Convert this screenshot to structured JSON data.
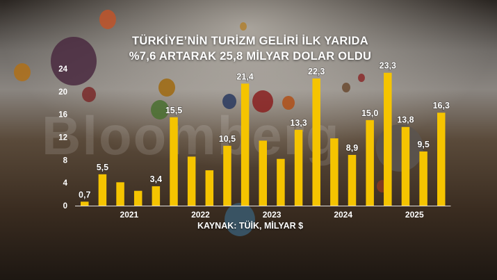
{
  "title_line1": "TÜRKİYE’NİN TURİZM GELİRİ İLK YARIDA",
  "title_line2": "%7,6 ARTARAK 25,8 MİLYAR DOLAR OLDU",
  "source": "KAYNAK: TÜİK, MİLYAR $",
  "watermark": "Bloomberg",
  "colors": {
    "bar": "#f5c400",
    "label": "#ffffff",
    "background": "#1d1712"
  },
  "chart_data": {
    "type": "bar",
    "title": "TÜRKİYE’NİN TURİZM GELİRİ İLK YARIDA %7,6 ARTARAK 25,8 MİLYAR DOLAR OLDU",
    "xlabel": "",
    "ylabel": "",
    "ylim": [
      0,
      24
    ],
    "yticks": [
      0,
      4,
      8,
      12,
      16,
      20,
      24
    ],
    "grid": false,
    "series": [
      {
        "values": [
          0.7,
          5.5,
          4.1,
          2.6,
          3.4,
          15.5,
          8.6,
          6.2,
          10.5,
          21.4,
          11.4,
          8.2,
          13.3,
          22.3,
          11.8,
          8.9,
          15.0,
          23.3,
          13.8,
          9.5,
          16.3
        ],
        "labels": [
          "0,7",
          "5,5",
          "",
          "",
          "3,4",
          "15,5",
          "",
          "",
          "10,5",
          "21,4",
          "",
          "",
          "13,3",
          "22,3",
          "",
          "8,9",
          "15,0",
          "23,3",
          "13,8",
          "9,5",
          "16,3"
        ]
      }
    ],
    "year_labels": [
      {
        "label": "2021",
        "from": 1,
        "to": 4
      },
      {
        "label": "2022",
        "from": 5,
        "to": 8
      },
      {
        "label": "2023",
        "from": 9,
        "to": 12
      },
      {
        "label": "2024",
        "from": 13,
        "to": 16
      },
      {
        "label": "2025",
        "from": 17,
        "to": 20
      }
    ]
  }
}
